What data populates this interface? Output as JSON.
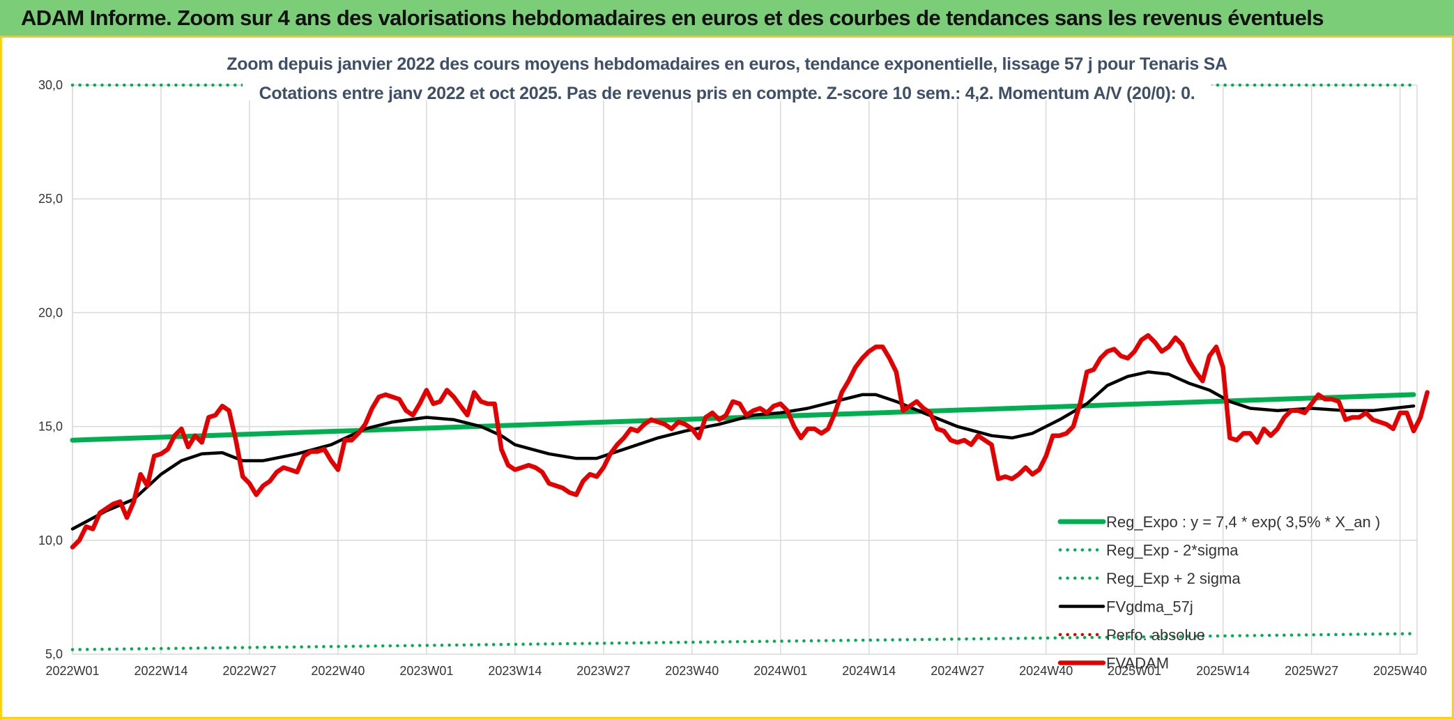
{
  "header": {
    "title": "ADAM Informe. Zoom sur 4 ans des valorisations hebdomadaires en euros et des courbes de tendances sans les revenus éventuels"
  },
  "colors": {
    "header_bg": "#7ccd78",
    "frame": "#ffd400",
    "green": "#00b050",
    "black": "#000000",
    "red": "#e50000",
    "title_text": "#3e5068"
  },
  "chart_data": {
    "type": "line",
    "title": "Zoom depuis janvier 2022 des cours moyens hebdomadaires en euros, tendance exponentielle, lissage 57 j pour Tenaris SA",
    "subtitle": "Cotations entre janv 2022 et oct 2025. Pas de revenus pris en compte. Z-score 10 sem.: 4,2. Momentum A/V (20/0): 0.",
    "ylim": [
      5,
      30
    ],
    "yticks": [
      "5,0",
      "10,0",
      "15,0",
      "20,0",
      "25,0",
      "30,0"
    ],
    "ytick_values": [
      5,
      10,
      15,
      20,
      25,
      30
    ],
    "x_range": [
      0,
      197
    ],
    "xticks": [
      "2022W01",
      "2022W14",
      "2022W27",
      "2022W40",
      "2023W01",
      "2023W14",
      "2023W27",
      "2023W40",
      "2024W01",
      "2024W14",
      "2024W27",
      "2024W40",
      "2025W01",
      "2025W14",
      "2025W27",
      "2025W40"
    ],
    "xtick_values": [
      0,
      13,
      26,
      39,
      52,
      65,
      78,
      91,
      104,
      117,
      130,
      143,
      156,
      169,
      182,
      195
    ],
    "legend": [
      "Reg_Expo : y = 7,4 * exp( 3,5% *  X_an )",
      "Reg_Exp - 2*sigma",
      "Reg_Exp + 2 sigma",
      "FVgdma_57j",
      "Perfo. absolue",
      "FVADAM"
    ],
    "legend_position": "bottom-right",
    "series": [
      {
        "name": "Reg_Expo : y = 7,4 * exp( 3,5% *  X_an )",
        "style": "solid",
        "color": "#00b050",
        "points": [
          [
            0,
            14.4
          ],
          [
            197,
            16.4
          ]
        ]
      },
      {
        "name": "Reg_Exp - 2*sigma",
        "style": "dotted",
        "color": "#00b050",
        "points": [
          [
            0,
            5.2
          ],
          [
            197,
            5.9
          ]
        ]
      },
      {
        "name": "Reg_Exp + 2 sigma",
        "style": "dotted",
        "color": "#00b050",
        "points": [
          [
            0,
            30.0
          ],
          [
            197,
            30.0
          ]
        ]
      },
      {
        "name": "FVgdma_57j",
        "style": "solid",
        "color": "#000000",
        "points": [
          [
            0,
            10.5
          ],
          [
            5,
            11.3
          ],
          [
            9,
            11.8
          ],
          [
            13,
            12.9
          ],
          [
            16,
            13.5
          ],
          [
            19,
            13.8
          ],
          [
            22,
            13.85
          ],
          [
            25,
            13.5
          ],
          [
            28,
            13.5
          ],
          [
            33,
            13.8
          ],
          [
            38,
            14.2
          ],
          [
            43,
            14.9
          ],
          [
            47,
            15.2
          ],
          [
            52,
            15.4
          ],
          [
            56,
            15.3
          ],
          [
            60,
            15.0
          ],
          [
            63,
            14.6
          ],
          [
            65,
            14.2
          ],
          [
            70,
            13.8
          ],
          [
            74,
            13.6
          ],
          [
            77,
            13.6
          ],
          [
            81,
            14.0
          ],
          [
            86,
            14.5
          ],
          [
            90,
            14.8
          ],
          [
            95,
            15.1
          ],
          [
            100,
            15.5
          ],
          [
            104,
            15.6
          ],
          [
            108,
            15.8
          ],
          [
            112,
            16.1
          ],
          [
            116,
            16.4
          ],
          [
            118,
            16.4
          ],
          [
            121,
            16.1
          ],
          [
            125,
            15.6
          ],
          [
            130,
            15.0
          ],
          [
            135,
            14.6
          ],
          [
            138,
            14.5
          ],
          [
            141,
            14.7
          ],
          [
            145,
            15.3
          ],
          [
            149,
            16.0
          ],
          [
            152,
            16.8
          ],
          [
            155,
            17.2
          ],
          [
            158,
            17.4
          ],
          [
            161,
            17.3
          ],
          [
            164,
            16.9
          ],
          [
            167,
            16.6
          ],
          [
            170,
            16.1
          ],
          [
            173,
            15.8
          ],
          [
            177,
            15.7
          ],
          [
            182,
            15.8
          ],
          [
            187,
            15.7
          ],
          [
            191,
            15.7
          ],
          [
            194,
            15.8
          ],
          [
            197,
            15.9
          ]
        ]
      },
      {
        "name": "Perfo. absolue",
        "style": "dotted",
        "color": "#e50000",
        "points": []
      },
      {
        "name": "FVADAM",
        "style": "solid",
        "color": "#e50000",
        "points": [
          [
            0,
            9.7
          ],
          [
            1,
            10.0
          ],
          [
            2,
            10.6
          ],
          [
            3,
            10.5
          ],
          [
            4,
            11.2
          ],
          [
            5,
            11.4
          ],
          [
            6,
            11.6
          ],
          [
            7,
            11.7
          ],
          [
            8,
            11.0
          ],
          [
            9,
            11.7
          ],
          [
            10,
            12.9
          ],
          [
            11,
            12.4
          ],
          [
            12,
            13.7
          ],
          [
            13,
            13.8
          ],
          [
            14,
            14.0
          ],
          [
            15,
            14.6
          ],
          [
            16,
            14.9
          ],
          [
            17,
            14.1
          ],
          [
            18,
            14.6
          ],
          [
            19,
            14.3
          ],
          [
            20,
            15.4
          ],
          [
            21,
            15.5
          ],
          [
            22,
            15.9
          ],
          [
            23,
            15.7
          ],
          [
            24,
            14.4
          ],
          [
            25,
            12.8
          ],
          [
            26,
            12.5
          ],
          [
            27,
            12.0
          ],
          [
            28,
            12.4
          ],
          [
            29,
            12.6
          ],
          [
            30,
            13.0
          ],
          [
            31,
            13.2
          ],
          [
            32,
            13.1
          ],
          [
            33,
            13.0
          ],
          [
            34,
            13.7
          ],
          [
            35,
            13.9
          ],
          [
            36,
            13.9
          ],
          [
            37,
            14.0
          ],
          [
            38,
            13.5
          ],
          [
            39,
            13.1
          ],
          [
            40,
            14.4
          ],
          [
            41,
            14.4
          ],
          [
            42,
            14.7
          ],
          [
            43,
            15.1
          ],
          [
            44,
            15.8
          ],
          [
            45,
            16.3
          ],
          [
            46,
            16.4
          ],
          [
            47,
            16.3
          ],
          [
            48,
            16.2
          ],
          [
            49,
            15.7
          ],
          [
            50,
            15.5
          ],
          [
            51,
            16.0
          ],
          [
            52,
            16.6
          ],
          [
            53,
            16.0
          ],
          [
            54,
            16.1
          ],
          [
            55,
            16.6
          ],
          [
            56,
            16.3
          ],
          [
            57,
            15.9
          ],
          [
            58,
            15.5
          ],
          [
            59,
            16.5
          ],
          [
            60,
            16.1
          ],
          [
            61,
            16.0
          ],
          [
            62,
            16.0
          ],
          [
            63,
            14.0
          ],
          [
            64,
            13.3
          ],
          [
            65,
            13.1
          ],
          [
            66,
            13.2
          ],
          [
            67,
            13.3
          ],
          [
            68,
            13.2
          ],
          [
            69,
            13.0
          ],
          [
            70,
            12.5
          ],
          [
            71,
            12.4
          ],
          [
            72,
            12.3
          ],
          [
            73,
            12.1
          ],
          [
            74,
            12.0
          ],
          [
            75,
            12.6
          ],
          [
            76,
            12.9
          ],
          [
            77,
            12.8
          ],
          [
            78,
            13.2
          ],
          [
            79,
            13.8
          ],
          [
            80,
            14.2
          ],
          [
            81,
            14.5
          ],
          [
            82,
            14.9
          ],
          [
            83,
            14.8
          ],
          [
            84,
            15.1
          ],
          [
            85,
            15.3
          ],
          [
            86,
            15.2
          ],
          [
            87,
            15.1
          ],
          [
            88,
            14.9
          ],
          [
            89,
            15.2
          ],
          [
            90,
            15.1
          ],
          [
            91,
            14.9
          ],
          [
            92,
            14.5
          ],
          [
            93,
            15.4
          ],
          [
            94,
            15.6
          ],
          [
            95,
            15.3
          ],
          [
            96,
            15.5
          ],
          [
            97,
            16.1
          ],
          [
            98,
            16.0
          ],
          [
            99,
            15.5
          ],
          [
            100,
            15.7
          ],
          [
            101,
            15.8
          ],
          [
            102,
            15.6
          ],
          [
            103,
            15.9
          ],
          [
            104,
            16.0
          ],
          [
            105,
            15.7
          ],
          [
            106,
            15.0
          ],
          [
            107,
            14.5
          ],
          [
            108,
            14.9
          ],
          [
            109,
            14.9
          ],
          [
            110,
            14.7
          ],
          [
            111,
            14.9
          ],
          [
            112,
            15.6
          ],
          [
            113,
            16.5
          ],
          [
            114,
            17.0
          ],
          [
            115,
            17.6
          ],
          [
            116,
            18.0
          ],
          [
            117,
            18.3
          ],
          [
            118,
            18.5
          ],
          [
            119,
            18.5
          ],
          [
            120,
            18.0
          ],
          [
            121,
            17.4
          ],
          [
            122,
            15.7
          ],
          [
            123,
            15.9
          ],
          [
            124,
            16.1
          ],
          [
            125,
            15.8
          ],
          [
            126,
            15.6
          ],
          [
            127,
            14.9
          ],
          [
            128,
            14.8
          ],
          [
            129,
            14.4
          ],
          [
            130,
            14.3
          ],
          [
            131,
            14.4
          ],
          [
            132,
            14.2
          ],
          [
            133,
            14.6
          ],
          [
            134,
            14.4
          ],
          [
            135,
            14.2
          ],
          [
            136,
            12.7
          ],
          [
            137,
            12.8
          ],
          [
            138,
            12.7
          ],
          [
            139,
            12.9
          ],
          [
            140,
            13.2
          ],
          [
            141,
            12.9
          ],
          [
            142,
            13.1
          ],
          [
            143,
            13.7
          ],
          [
            144,
            14.6
          ],
          [
            145,
            14.6
          ],
          [
            146,
            14.7
          ],
          [
            147,
            15.0
          ],
          [
            148,
            16.0
          ],
          [
            149,
            17.4
          ],
          [
            150,
            17.5
          ],
          [
            151,
            18.0
          ],
          [
            152,
            18.3
          ],
          [
            153,
            18.4
          ],
          [
            154,
            18.1
          ],
          [
            155,
            18.0
          ],
          [
            156,
            18.3
          ],
          [
            157,
            18.8
          ],
          [
            158,
            19.0
          ],
          [
            159,
            18.7
          ],
          [
            160,
            18.3
          ],
          [
            161,
            18.5
          ],
          [
            162,
            18.9
          ],
          [
            163,
            18.6
          ],
          [
            164,
            17.9
          ],
          [
            165,
            17.4
          ],
          [
            166,
            17.0
          ],
          [
            167,
            18.1
          ],
          [
            168,
            18.5
          ],
          [
            169,
            17.6
          ],
          [
            170,
            14.5
          ],
          [
            171,
            14.4
          ],
          [
            172,
            14.7
          ],
          [
            173,
            14.7
          ],
          [
            174,
            14.3
          ],
          [
            175,
            14.9
          ],
          [
            176,
            14.6
          ],
          [
            177,
            14.9
          ],
          [
            178,
            15.4
          ],
          [
            179,
            15.7
          ],
          [
            180,
            15.7
          ],
          [
            181,
            15.6
          ],
          [
            182,
            16.0
          ],
          [
            183,
            16.4
          ],
          [
            184,
            16.2
          ],
          [
            185,
            16.2
          ],
          [
            186,
            16.1
          ],
          [
            187,
            15.3
          ],
          [
            188,
            15.4
          ],
          [
            189,
            15.4
          ],
          [
            190,
            15.6
          ],
          [
            191,
            15.3
          ],
          [
            192,
            15.2
          ],
          [
            193,
            15.1
          ],
          [
            194,
            14.9
          ],
          [
            195,
            15.6
          ],
          [
            196,
            15.6
          ],
          [
            197,
            14.8
          ],
          [
            198,
            15.4
          ],
          [
            199,
            16.5
          ]
        ]
      }
    ]
  }
}
